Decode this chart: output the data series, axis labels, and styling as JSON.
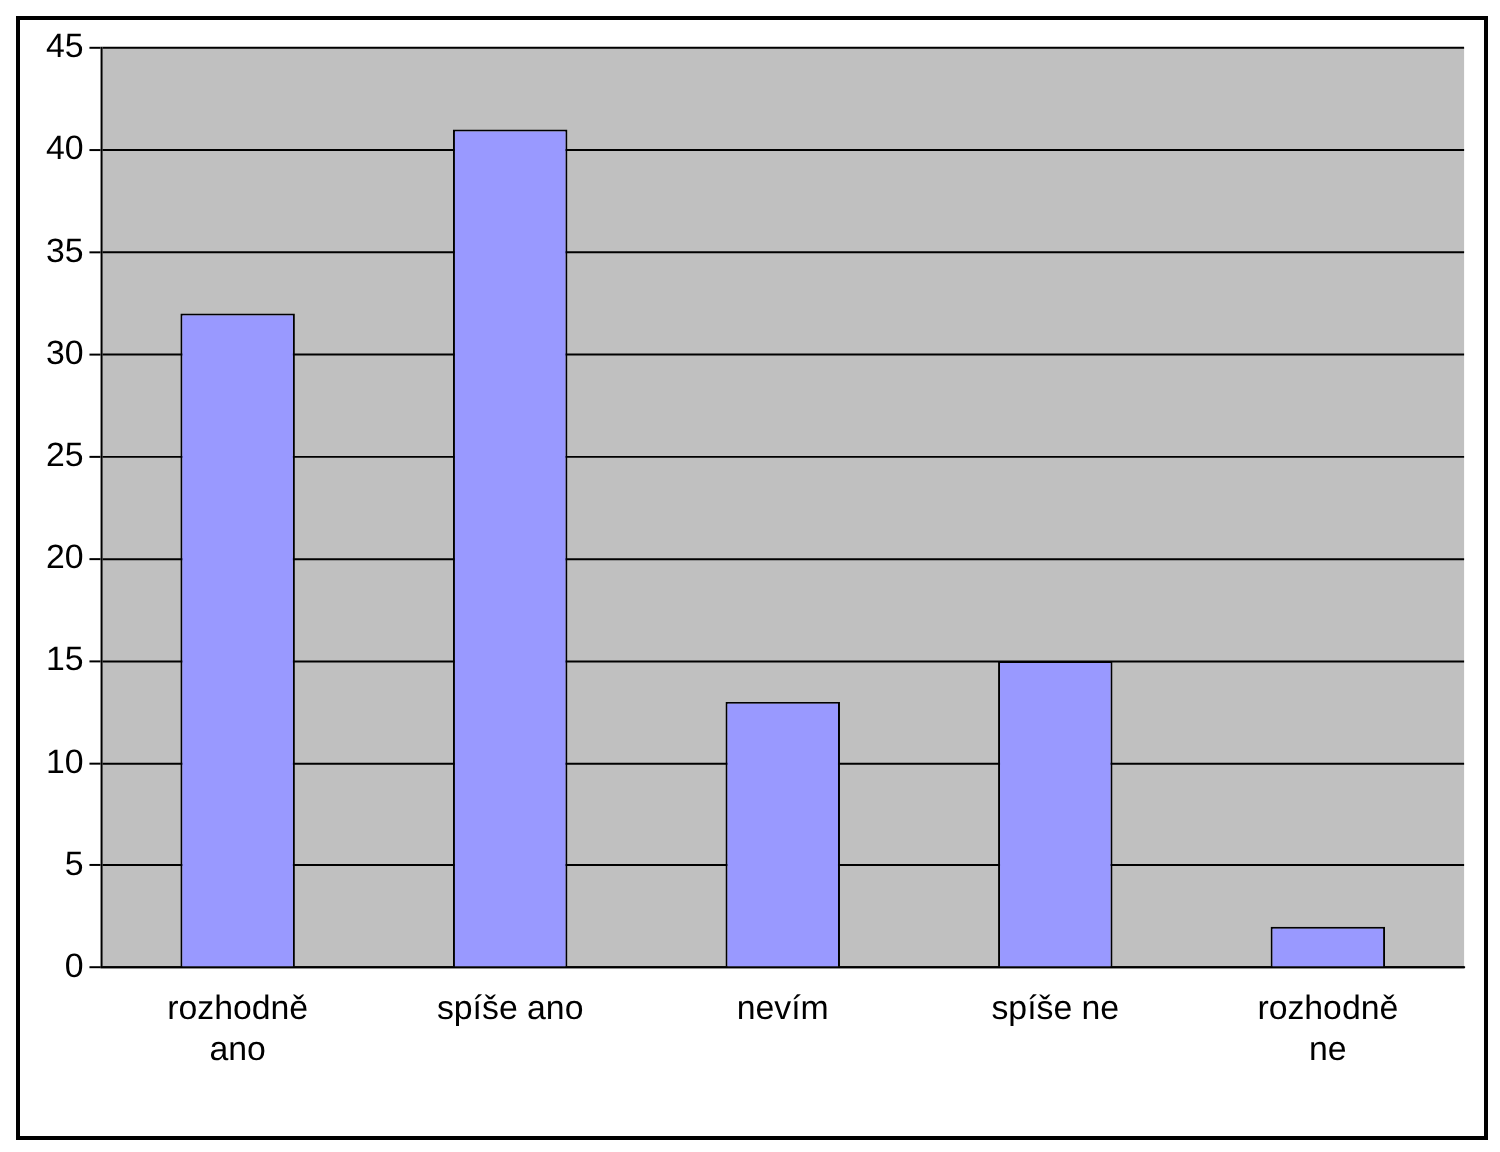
{
  "chart_data": {
    "type": "bar",
    "categories": [
      "rozhodně ano",
      "spíše ano",
      "nevím",
      "spíše ne",
      "rozhodně ne"
    ],
    "values": [
      32,
      41,
      13,
      15,
      2
    ],
    "color": "#9999ff",
    "ylim": [
      0,
      45
    ],
    "yticks": [
      0,
      5,
      10,
      15,
      20,
      25,
      30,
      35,
      40,
      45
    ],
    "grid": "y",
    "legend": false
  }
}
